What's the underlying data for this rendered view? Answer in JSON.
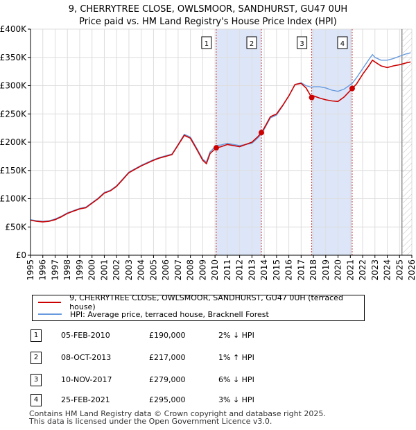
{
  "title_line1": "9, CHERRYTREE CLOSE, OWLSMOOR, SANDHURST, GU47 0UH",
  "title_line2": "Price paid vs. HM Land Registry's House Price Index (HPI)",
  "colors": {
    "price": "#cc0000",
    "hpi": "#6699dd",
    "shade": "#dde6f8",
    "grid": "#dddddd",
    "marker_line": "#cc3333"
  },
  "legend": {
    "price_label": "9, CHERRYTREE CLOSE, OWLSMOOR, SANDHURST, GU47 0UH (terraced house)",
    "hpi_label": "HPI: Average price, terraced house, Bracknell Forest"
  },
  "sales": [
    {
      "num": "1",
      "date": "05-FEB-2010",
      "price": "£190,000",
      "hpi_delta": "2% ↓ HPI"
    },
    {
      "num": "2",
      "date": "08-OCT-2013",
      "price": "£217,000",
      "hpi_delta": "1% ↑ HPI"
    },
    {
      "num": "3",
      "date": "10-NOV-2017",
      "price": "£279,000",
      "hpi_delta": "6% ↓ HPI"
    },
    {
      "num": "4",
      "date": "25-FEB-2021",
      "price": "£295,000",
      "hpi_delta": "3% ↓ HPI"
    }
  ],
  "footer_line1": "Contains HM Land Registry data © Crown copyright and database right 2025.",
  "footer_line2": "This data is licensed under the Open Government Licence v3.0.",
  "chart_data": {
    "type": "line",
    "title": "9, CHERRYTREE CLOSE, OWLSMOOR, SANDHURST, GU47 0UH",
    "subtitle": "Price paid vs. HM Land Registry's House Price Index (HPI)",
    "xlim": [
      1995,
      2026
    ],
    "ylim": [
      0,
      400000
    ],
    "x_ticks": [
      1995,
      1996,
      1997,
      1998,
      1999,
      2000,
      2001,
      2002,
      2003,
      2004,
      2005,
      2006,
      2007,
      2008,
      2009,
      2010,
      2011,
      2012,
      2013,
      2014,
      2015,
      2016,
      2017,
      2018,
      2019,
      2020,
      2021,
      2022,
      2023,
      2024,
      2025,
      2026
    ],
    "y_ticks": [
      {
        "value": 0,
        "label": "£0"
      },
      {
        "value": 50000,
        "label": "£50K"
      },
      {
        "value": 100000,
        "label": "£100K"
      },
      {
        "value": 150000,
        "label": "£150K"
      },
      {
        "value": 200000,
        "label": "£200K"
      },
      {
        "value": 250000,
        "label": "£250K"
      },
      {
        "value": 300000,
        "label": "£300K"
      },
      {
        "value": 350000,
        "label": "£350K"
      },
      {
        "value": 400000,
        "label": "£400K"
      }
    ],
    "sale_points": [
      {
        "label": "1",
        "x": 2010.1,
        "y": 190000
      },
      {
        "label": "2",
        "x": 2013.77,
        "y": 217000
      },
      {
        "label": "3",
        "x": 2017.86,
        "y": 279000
      },
      {
        "label": "4",
        "x": 2021.15,
        "y": 295000
      }
    ],
    "shaded_ranges": [
      [
        2010.1,
        2013.77
      ],
      [
        2017.86,
        2021.15
      ]
    ],
    "forecast_start": 2025.2,
    "series": [
      {
        "name": "9, CHERRYTREE CLOSE, OWLSMOOR, SANDHURST, GU47 0UH (terraced house)",
        "x": [
          1995,
          1995.5,
          1996,
          1996.5,
          1997,
          1997.5,
          1998,
          1998.5,
          1999,
          1999.5,
          2000,
          2000.5,
          2001,
          2001.5,
          2002,
          2002.5,
          2003,
          2003.5,
          2004,
          2004.5,
          2005,
          2005.5,
          2006,
          2006.5,
          2007,
          2007.5,
          2008,
          2008.5,
          2009,
          2009.3,
          2009.6,
          2010.1,
          2010.5,
          2011,
          2011.5,
          2012,
          2012.5,
          2013,
          2013.5,
          2013.77,
          2014,
          2014.5,
          2015,
          2015.5,
          2016,
          2016.5,
          2017,
          2017.4,
          2017.86,
          2018,
          2018.5,
          2019,
          2019.5,
          2020,
          2020.5,
          2021.15,
          2021.5,
          2022,
          2022.5,
          2022.8,
          2023,
          2023.5,
          2024,
          2024.5,
          2025,
          2025.5,
          2025.9
        ],
        "y": [
          62000,
          60000,
          59000,
          60000,
          63000,
          68000,
          74000,
          78000,
          82000,
          84000,
          92000,
          100000,
          110000,
          114000,
          122000,
          134000,
          146000,
          152000,
          158000,
          163000,
          168000,
          172000,
          175000,
          178000,
          195000,
          212000,
          207000,
          188000,
          168000,
          162000,
          180000,
          190000,
          192000,
          196000,
          194000,
          192000,
          196000,
          200000,
          210000,
          217000,
          225000,
          245000,
          250000,
          265000,
          282000,
          302000,
          304000,
          296000,
          279000,
          282000,
          278000,
          275000,
          273000,
          272000,
          280000,
          295000,
          303000,
          320000,
          335000,
          345000,
          342000,
          335000,
          332000,
          335000,
          337000,
          340000,
          342000
        ]
      },
      {
        "name": "HPI: Average price, terraced house, Bracknell Forest",
        "x": [
          1995,
          1995.5,
          1996,
          1996.5,
          1997,
          1997.5,
          1998,
          1998.5,
          1999,
          1999.5,
          2000,
          2000.5,
          2001,
          2001.5,
          2002,
          2002.5,
          2003,
          2003.5,
          2004,
          2004.5,
          2005,
          2005.5,
          2006,
          2006.5,
          2007,
          2007.5,
          2008,
          2008.5,
          2009,
          2009.3,
          2009.6,
          2010.1,
          2010.5,
          2011,
          2011.5,
          2012,
          2012.5,
          2013,
          2013.5,
          2013.77,
          2014,
          2014.5,
          2015,
          2015.5,
          2016,
          2016.5,
          2017,
          2017.4,
          2017.86,
          2018,
          2018.5,
          2019,
          2019.5,
          2020,
          2020.5,
          2021.15,
          2021.5,
          2022,
          2022.5,
          2022.8,
          2023,
          2023.5,
          2024,
          2024.5,
          2025,
          2025.5,
          2025.9
        ],
        "y": [
          63000,
          61000,
          60000,
          61000,
          64000,
          69000,
          75000,
          79000,
          83000,
          85000,
          93000,
          101000,
          111000,
          115000,
          123000,
          135000,
          147000,
          153000,
          159000,
          164000,
          169000,
          173000,
          176000,
          179000,
          196000,
          214000,
          209000,
          190000,
          170000,
          165000,
          183000,
          194000,
          195000,
          198000,
          196000,
          194000,
          196000,
          198000,
          208000,
          215000,
          223000,
          243000,
          248000,
          264000,
          282000,
          302000,
          305000,
          300000,
          297000,
          298000,
          298000,
          296000,
          292000,
          290000,
          294000,
          304000,
          314000,
          330000,
          346000,
          355000,
          350000,
          345000,
          345000,
          348000,
          352000,
          356000,
          358000
        ]
      }
    ]
  }
}
